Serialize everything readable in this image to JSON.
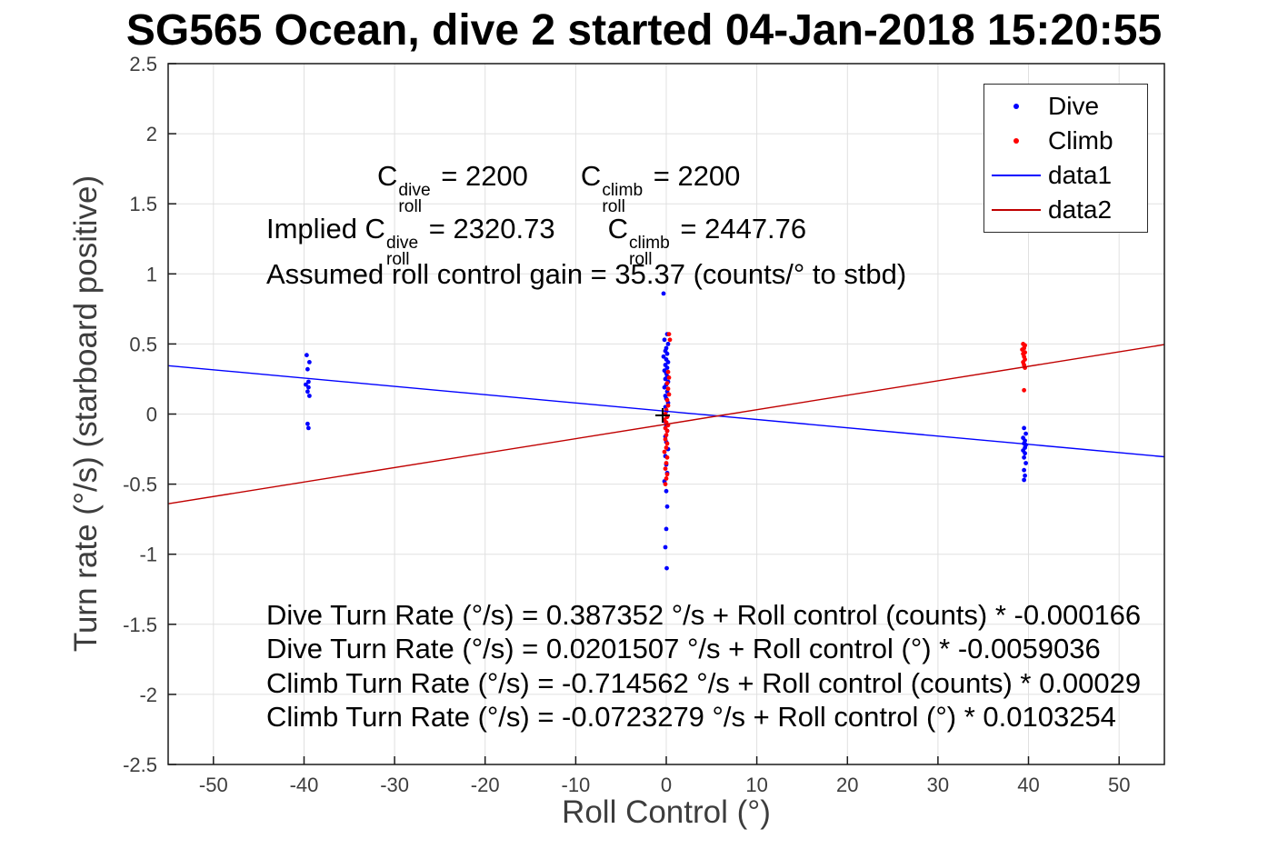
{
  "title": "SG565 Ocean, dive 2 started 04-Jan-2018 15:20:55",
  "axes": {
    "xlabel": "Roll Control (°)",
    "ylabel": "Turn rate (°/s) (starboard positive)"
  },
  "annotations": {
    "line1": {
      "c1": "C",
      "sup1": "dive",
      "sub1": "roll",
      "eq1": " = 2200",
      "c2": "C",
      "sup2": "climb",
      "sub2": "roll",
      "eq2": " = 2200"
    },
    "line2": {
      "pre": "Implied C",
      "sup1": "dive",
      "sub1": "roll",
      "eq1": " = 2320.73",
      "c2": "C",
      "sup2": "climb",
      "sub2": "roll",
      "eq2": " = 2447.76"
    },
    "line3": "Assumed roll control gain = 35.37 (counts/° to stbd)",
    "fit_lines": [
      "Dive Turn Rate (°/s) = 0.387352 °/s + Roll control (counts) * -0.000166",
      "Dive Turn Rate (°/s) = 0.0201507 °/s + Roll control (°) * -0.0059036",
      "Climb Turn Rate (°/s) = -0.714562 °/s + Roll control (counts) * 0.00029",
      "Climb Turn Rate (°/s) = -0.0723279 °/s + Roll control (°) * 0.0103254"
    ]
  },
  "chart_data": {
    "type": "scatter",
    "title": "SG565 Ocean, dive 2 started 04-Jan-2018 15:20:55",
    "xlabel": "Roll Control (°)",
    "ylabel": "Turn rate (°/s) (starboard positive)",
    "xlim": [
      -55,
      55
    ],
    "ylim": [
      -2.5,
      2.5
    ],
    "xticks": [
      -50,
      -40,
      -30,
      -20,
      -10,
      0,
      10,
      20,
      30,
      40,
      50
    ],
    "yticks": [
      -2.5,
      -2,
      -1.5,
      -1,
      -0.5,
      0,
      0.5,
      1,
      1.5,
      2,
      2.5
    ],
    "grid": true,
    "grid_color": "#e0e0e0",
    "legend": {
      "position": "top-right",
      "entries": [
        {
          "label": "Dive",
          "symbol": "dot",
          "color": "#0000ff"
        },
        {
          "label": "Climb",
          "symbol": "dot",
          "color": "#ff0000"
        },
        {
          "label": "data1",
          "symbol": "line",
          "color": "#0000ff"
        },
        {
          "label": "data2",
          "symbol": "line",
          "color": "#c00000"
        }
      ]
    },
    "series": [
      {
        "name": "Dive",
        "type": "scatter",
        "color": "#0000ff",
        "points": [
          [
            -39.7,
            0.42
          ],
          [
            -39.4,
            0.37
          ],
          [
            -39.6,
            0.32
          ],
          [
            -39.5,
            0.23
          ],
          [
            -39.8,
            0.21
          ],
          [
            -39.5,
            0.19
          ],
          [
            -39.6,
            0.16
          ],
          [
            -39.4,
            0.13
          ],
          [
            -39.6,
            -0.07
          ],
          [
            -39.5,
            -0.1
          ],
          [
            -0.3,
            0.86
          ],
          [
            0.1,
            0.57
          ],
          [
            -0.2,
            0.53
          ],
          [
            0.2,
            0.5
          ],
          [
            0.0,
            0.47
          ],
          [
            -0.1,
            0.45
          ],
          [
            0.1,
            0.43
          ],
          [
            -0.3,
            0.41
          ],
          [
            0.0,
            0.39
          ],
          [
            0.2,
            0.37
          ],
          [
            -0.1,
            0.35
          ],
          [
            0.1,
            0.33
          ],
          [
            -0.2,
            0.31
          ],
          [
            0.0,
            0.29
          ],
          [
            0.1,
            0.27
          ],
          [
            -0.1,
            0.25
          ],
          [
            0.2,
            0.23
          ],
          [
            0.0,
            0.21
          ],
          [
            -0.2,
            0.19
          ],
          [
            0.1,
            0.16
          ],
          [
            -0.1,
            0.13
          ],
          [
            0.0,
            0.11
          ],
          [
            0.2,
            0.08
          ],
          [
            -0.1,
            0.05
          ],
          [
            0.0,
            0.02
          ],
          [
            0.1,
            -0.02
          ],
          [
            -0.2,
            -0.05
          ],
          [
            0.0,
            -0.08
          ],
          [
            0.1,
            -0.12
          ],
          [
            -0.1,
            -0.16
          ],
          [
            0.0,
            -0.2
          ],
          [
            0.2,
            -0.25
          ],
          [
            -0.1,
            -0.3
          ],
          [
            0.0,
            -0.36
          ],
          [
            0.1,
            -0.42
          ],
          [
            -0.2,
            -0.48
          ],
          [
            0.0,
            -0.55
          ],
          [
            0.1,
            -0.66
          ],
          [
            0.0,
            -0.82
          ],
          [
            -0.1,
            -0.95
          ],
          [
            0.05,
            -1.1
          ],
          [
            39.5,
            -0.1
          ],
          [
            39.7,
            -0.14
          ],
          [
            39.4,
            -0.17
          ],
          [
            39.6,
            -0.19
          ],
          [
            39.5,
            -0.21
          ],
          [
            39.7,
            -0.22
          ],
          [
            39.6,
            -0.24
          ],
          [
            39.4,
            -0.26
          ],
          [
            39.6,
            -0.28
          ],
          [
            39.5,
            -0.31
          ],
          [
            39.7,
            -0.35
          ],
          [
            39.5,
            -0.4
          ],
          [
            39.6,
            -0.44
          ],
          [
            39.5,
            -0.47
          ]
        ]
      },
      {
        "name": "Climb",
        "type": "scatter",
        "color": "#ff0000",
        "points": [
          [
            0.3,
            0.57
          ],
          [
            0.4,
            0.53
          ],
          [
            0.2,
            0.3
          ],
          [
            0.3,
            0.26
          ],
          [
            0.1,
            0.22
          ],
          [
            0.2,
            0.18
          ],
          [
            0.3,
            0.14
          ],
          [
            0.1,
            0.1
          ],
          [
            0.2,
            0.06
          ],
          [
            0.0,
            0.03
          ],
          [
            -0.1,
            0.0
          ],
          [
            0.1,
            -0.02
          ],
          [
            -0.2,
            -0.04
          ],
          [
            0.0,
            -0.06
          ],
          [
            0.2,
            -0.08
          ],
          [
            -0.1,
            -0.1
          ],
          [
            0.1,
            -0.12
          ],
          [
            0.0,
            -0.15
          ],
          [
            -0.1,
            -0.18
          ],
          [
            0.1,
            -0.21
          ],
          [
            0.0,
            -0.24
          ],
          [
            -0.2,
            -0.27
          ],
          [
            0.1,
            -0.31
          ],
          [
            0.0,
            -0.35
          ],
          [
            -0.1,
            -0.39
          ],
          [
            0.1,
            -0.43
          ],
          [
            0.0,
            -0.46
          ],
          [
            -0.1,
            -0.5
          ],
          [
            39.4,
            0.5
          ],
          [
            39.6,
            0.49
          ],
          [
            39.5,
            0.47
          ],
          [
            39.3,
            0.46
          ],
          [
            39.6,
            0.44
          ],
          [
            39.4,
            0.43
          ],
          [
            39.5,
            0.41
          ],
          [
            39.6,
            0.39
          ],
          [
            39.4,
            0.37
          ],
          [
            39.5,
            0.35
          ],
          [
            39.6,
            0.33
          ],
          [
            39.5,
            0.17
          ]
        ]
      },
      {
        "name": "data1",
        "type": "line",
        "color": "#0000ff",
        "x": [
          -55,
          55
        ],
        "y": [
          0.3448,
          -0.3045
        ]
      },
      {
        "name": "data2",
        "type": "line",
        "color": "#c00000",
        "x": [
          -55,
          55
        ],
        "y": [
          -0.6402,
          0.4956
        ]
      },
      {
        "name": "origin",
        "type": "marker-plus",
        "color": "#000000",
        "point": [
          -0.4,
          -0.01
        ]
      }
    ]
  }
}
